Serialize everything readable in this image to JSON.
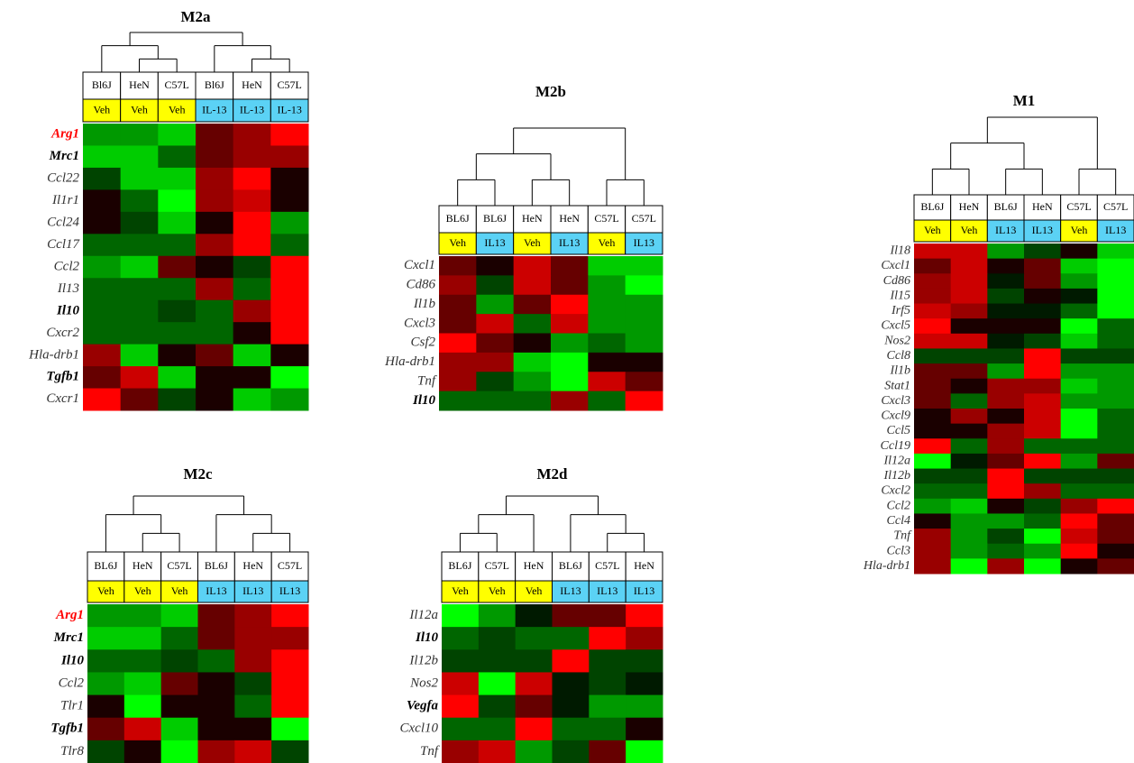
{
  "chart_data": [
    {
      "type": "heatmap",
      "title": "M2a",
      "columns": [
        "Bl6J",
        "HeN",
        "C57L",
        "Bl6J",
        "HeN",
        "C57L"
      ],
      "treatments": [
        "Veh",
        "Veh",
        "Veh",
        "IL-13",
        "IL-13",
        "IL-13"
      ],
      "treatment_colors": [
        "#ffff00",
        "#ffff00",
        "#ffff00",
        "#5bd2f5",
        "#5bd2f5",
        "#5bd2f5"
      ],
      "rows": [
        "Arg1",
        "Mrc1",
        "Ccl22",
        "Il1r1",
        "Ccl24",
        "Ccl17",
        "Ccl2",
        "Il13",
        "Il10",
        "Cxcr2",
        "Hla-drb1",
        "Tgfb1",
        "Cxcr1"
      ],
      "row_label_weights": [
        "bold",
        "bold",
        "normal",
        "normal",
        "normal",
        "normal",
        "normal",
        "normal",
        "bold",
        "normal",
        "normal",
        "bold",
        "normal"
      ],
      "row_label_colors": [
        "#ff0000",
        "#000000",
        "#333333",
        "#333333",
        "#333333",
        "#333333",
        "#333333",
        "#333333",
        "#000000",
        "#333333",
        "#333333",
        "#000000",
        "#333333"
      ],
      "colors": [
        [
          "#009900",
          "#009900",
          "#00cc00",
          "#660000",
          "#990000",
          "#ff0000"
        ],
        [
          "#00cc00",
          "#00cc00",
          "#006600",
          "#660000",
          "#990000",
          "#990000"
        ],
        [
          "#004400",
          "#00cc00",
          "#00cc00",
          "#990000",
          "#ff0000",
          "#1a0000"
        ],
        [
          "#1a0000",
          "#006600",
          "#00ff00",
          "#990000",
          "#cc0000",
          "#1a0000"
        ],
        [
          "#1a0000",
          "#004400",
          "#00cc00",
          "#1a0000",
          "#ff0000",
          "#009900"
        ],
        [
          "#006600",
          "#006600",
          "#006600",
          "#990000",
          "#ff0000",
          "#006600"
        ],
        [
          "#009900",
          "#00cc00",
          "#660000",
          "#1a0000",
          "#004400",
          "#ff0000"
        ],
        [
          "#006600",
          "#006600",
          "#006600",
          "#990000",
          "#006600",
          "#ff0000"
        ],
        [
          "#006600",
          "#006600",
          "#004400",
          "#006600",
          "#990000",
          "#ff0000"
        ],
        [
          "#006600",
          "#006600",
          "#006600",
          "#006600",
          "#1a0000",
          "#ff0000"
        ],
        [
          "#990000",
          "#00cc00",
          "#1a0000",
          "#660000",
          "#00cc00",
          "#1a0000"
        ],
        [
          "#660000",
          "#cc0000",
          "#00cc00",
          "#1a0000",
          "#1a0000",
          "#00ff00"
        ],
        [
          "#ff0000",
          "#660000",
          "#004400",
          "#1a0000",
          "#00cc00",
          "#009900"
        ]
      ]
    },
    {
      "type": "heatmap",
      "title": "M2b",
      "columns": [
        "BL6J",
        "BL6J",
        "HeN",
        "HeN",
        "C57L",
        "C57L"
      ],
      "treatments": [
        "Veh",
        "IL13",
        "Veh",
        "IL13",
        "Veh",
        "IL13"
      ],
      "treatment_colors": [
        "#ffff00",
        "#5bd2f5",
        "#ffff00",
        "#5bd2f5",
        "#ffff00",
        "#5bd2f5"
      ],
      "rows": [
        "Cxcl1",
        "Cd86",
        "Il1b",
        "Cxcl3",
        "Csf2",
        "Hla-drb1",
        "Tnf",
        "Il10"
      ],
      "row_label_weights": [
        "normal",
        "normal",
        "normal",
        "normal",
        "normal",
        "normal",
        "normal",
        "bold"
      ],
      "row_label_colors": [
        "#333333",
        "#333333",
        "#333333",
        "#333333",
        "#333333",
        "#333333",
        "#333333",
        "#000000"
      ],
      "colors": [
        [
          "#660000",
          "#1a0000",
          "#cc0000",
          "#660000",
          "#00cc00",
          "#00cc00"
        ],
        [
          "#990000",
          "#004400",
          "#cc0000",
          "#660000",
          "#009900",
          "#00ff00"
        ],
        [
          "#660000",
          "#009900",
          "#660000",
          "#ff0000",
          "#009900",
          "#009900"
        ],
        [
          "#660000",
          "#cc0000",
          "#006600",
          "#cc0000",
          "#009900",
          "#009900"
        ],
        [
          "#ff0000",
          "#660000",
          "#1a0000",
          "#009900",
          "#006600",
          "#009900"
        ],
        [
          "#990000",
          "#990000",
          "#00cc00",
          "#00ff00",
          "#1a0000",
          "#1a0000"
        ],
        [
          "#990000",
          "#004400",
          "#009900",
          "#00ff00",
          "#cc0000",
          "#660000"
        ],
        [
          "#006600",
          "#006600",
          "#006600",
          "#990000",
          "#006600",
          "#ff0000"
        ]
      ]
    },
    {
      "type": "heatmap",
      "title": "M1",
      "columns": [
        "BL6J",
        "HeN",
        "BL6J",
        "HeN",
        "C57L",
        "C57L"
      ],
      "treatments": [
        "Veh",
        "Veh",
        "IL13",
        "IL13",
        "Veh",
        "IL13"
      ],
      "treatment_colors": [
        "#ffff00",
        "#ffff00",
        "#5bd2f5",
        "#5bd2f5",
        "#ffff00",
        "#5bd2f5"
      ],
      "rows": [
        "Il18",
        "Cxcl1",
        "Cd86",
        "Il15",
        "Irf5",
        "Cxcl5",
        "Nos2",
        "Ccl8",
        "Il1b",
        "Stat1",
        "Cxcl3",
        "Cxcl9",
        "Ccl5",
        "Ccl19",
        "Il12a",
        "Il12b",
        "Cxcl2",
        "Ccl2",
        "Ccl4",
        "Tnf",
        "Ccl3",
        "Hla-drb1"
      ],
      "row_label_weights": [
        "normal",
        "normal",
        "normal",
        "normal",
        "normal",
        "normal",
        "normal",
        "normal",
        "normal",
        "normal",
        "normal",
        "normal",
        "normal",
        "normal",
        "normal",
        "normal",
        "normal",
        "normal",
        "normal",
        "normal",
        "normal",
        "normal"
      ],
      "row_label_colors": [
        "#333333",
        "#333333",
        "#333333",
        "#333333",
        "#333333",
        "#333333",
        "#333333",
        "#333333",
        "#333333",
        "#333333",
        "#333333",
        "#333333",
        "#333333",
        "#333333",
        "#333333",
        "#333333",
        "#333333",
        "#333333",
        "#333333",
        "#333333",
        "#333333",
        "#333333"
      ],
      "colors": [
        [
          "#cc0000",
          "#cc0000",
          "#009900",
          "#004400",
          "#1a0000",
          "#00cc00"
        ],
        [
          "#660000",
          "#cc0000",
          "#1a0000",
          "#660000",
          "#00cc00",
          "#00ff00"
        ],
        [
          "#990000",
          "#cc0000",
          "#001a00",
          "#660000",
          "#009900",
          "#00ff00"
        ],
        [
          "#990000",
          "#cc0000",
          "#004400",
          "#1a0000",
          "#001a00",
          "#00ff00"
        ],
        [
          "#cc0000",
          "#990000",
          "#001a00",
          "#001a00",
          "#006600",
          "#00ff00"
        ],
        [
          "#ff0000",
          "#1a0000",
          "#1a0000",
          "#1a0000",
          "#00ff00",
          "#006600"
        ],
        [
          "#cc0000",
          "#cc0000",
          "#001a00",
          "#004400",
          "#00cc00",
          "#006600"
        ],
        [
          "#004400",
          "#004400",
          "#004400",
          "#ff0000",
          "#004400",
          "#004400"
        ],
        [
          "#660000",
          "#660000",
          "#009900",
          "#ff0000",
          "#009900",
          "#009900"
        ],
        [
          "#660000",
          "#1a0000",
          "#990000",
          "#990000",
          "#00cc00",
          "#009900"
        ],
        [
          "#660000",
          "#006600",
          "#990000",
          "#cc0000",
          "#009900",
          "#009900"
        ],
        [
          "#1a0000",
          "#990000",
          "#1a0000",
          "#cc0000",
          "#00ff00",
          "#006600"
        ],
        [
          "#1a0000",
          "#1a0000",
          "#990000",
          "#cc0000",
          "#00ff00",
          "#006600"
        ],
        [
          "#ff0000",
          "#006600",
          "#990000",
          "#006600",
          "#006600",
          "#006600"
        ],
        [
          "#00ff00",
          "#001a00",
          "#660000",
          "#ff0000",
          "#009900",
          "#660000"
        ],
        [
          "#004400",
          "#004400",
          "#ff0000",
          "#004400",
          "#004400",
          "#004400"
        ],
        [
          "#006600",
          "#006600",
          "#ff0000",
          "#990000",
          "#006600",
          "#006600"
        ],
        [
          "#009900",
          "#00cc00",
          "#1a0000",
          "#004400",
          "#990000",
          "#ff0000"
        ],
        [
          "#1a0000",
          "#009900",
          "#009900",
          "#006600",
          "#ff0000",
          "#660000"
        ],
        [
          "#990000",
          "#009900",
          "#004400",
          "#00ff00",
          "#cc0000",
          "#660000"
        ],
        [
          "#990000",
          "#009900",
          "#006600",
          "#009900",
          "#ff0000",
          "#1a0000"
        ],
        [
          "#990000",
          "#00ff00",
          "#990000",
          "#00ff00",
          "#1a0000",
          "#660000"
        ]
      ]
    },
    {
      "type": "heatmap",
      "title": "M2c",
      "columns": [
        "BL6J",
        "HeN",
        "C57L",
        "BL6J",
        "HeN",
        "C57L"
      ],
      "treatments": [
        "Veh",
        "Veh",
        "Veh",
        "IL13",
        "IL13",
        "IL13"
      ],
      "treatment_colors": [
        "#ffff00",
        "#ffff00",
        "#ffff00",
        "#5bd2f5",
        "#5bd2f5",
        "#5bd2f5"
      ],
      "rows": [
        "Arg1",
        "Mrc1",
        "Il10",
        "Ccl2",
        "Tlr1",
        "Tgfb1",
        "Tlr8"
      ],
      "row_label_weights": [
        "bold",
        "bold",
        "bold",
        "normal",
        "normal",
        "bold",
        "normal"
      ],
      "row_label_colors": [
        "#ff0000",
        "#000000",
        "#000000",
        "#333333",
        "#333333",
        "#000000",
        "#333333"
      ],
      "colors": [
        [
          "#009900",
          "#009900",
          "#00cc00",
          "#660000",
          "#990000",
          "#ff0000"
        ],
        [
          "#00cc00",
          "#00cc00",
          "#006600",
          "#660000",
          "#990000",
          "#990000"
        ],
        [
          "#006600",
          "#006600",
          "#004400",
          "#006600",
          "#990000",
          "#ff0000"
        ],
        [
          "#009900",
          "#00cc00",
          "#660000",
          "#1a0000",
          "#004400",
          "#ff0000"
        ],
        [
          "#1a0000",
          "#00ff00",
          "#1a0000",
          "#1a0000",
          "#006600",
          "#ff0000"
        ],
        [
          "#660000",
          "#cc0000",
          "#00cc00",
          "#1a0000",
          "#1a0000",
          "#00ff00"
        ],
        [
          "#004400",
          "#1a0000",
          "#00ff00",
          "#990000",
          "#cc0000",
          "#004400"
        ]
      ]
    },
    {
      "type": "heatmap",
      "title": "M2d",
      "columns": [
        "BL6J",
        "C57L",
        "HeN",
        "BL6J",
        "C57L",
        "HeN"
      ],
      "treatments": [
        "Veh",
        "Veh",
        "Veh",
        "IL13",
        "IL13",
        "IL13"
      ],
      "treatment_colors": [
        "#ffff00",
        "#ffff00",
        "#ffff00",
        "#5bd2f5",
        "#5bd2f5",
        "#5bd2f5"
      ],
      "rows": [
        "Il12a",
        "Il10",
        "Il12b",
        "Nos2",
        "Vegfa",
        "Cxcl10",
        "Tnf"
      ],
      "row_label_weights": [
        "normal",
        "bold",
        "normal",
        "normal",
        "bold",
        "normal",
        "normal"
      ],
      "row_label_colors": [
        "#333333",
        "#000000",
        "#333333",
        "#333333",
        "#000000",
        "#333333",
        "#333333"
      ],
      "colors": [
        [
          "#00ff00",
          "#009900",
          "#001a00",
          "#660000",
          "#660000",
          "#ff0000"
        ],
        [
          "#006600",
          "#004400",
          "#006600",
          "#006600",
          "#ff0000",
          "#990000"
        ],
        [
          "#004400",
          "#004400",
          "#004400",
          "#ff0000",
          "#004400",
          "#004400"
        ],
        [
          "#cc0000",
          "#00ff00",
          "#cc0000",
          "#001a00",
          "#004400",
          "#001a00"
        ],
        [
          "#ff0000",
          "#004400",
          "#660000",
          "#001a00",
          "#009900",
          "#009900"
        ],
        [
          "#006600",
          "#006600",
          "#ff0000",
          "#006600",
          "#006600",
          "#1a0000"
        ],
        [
          "#990000",
          "#cc0000",
          "#009900",
          "#004400",
          "#660000",
          "#00ff00"
        ]
      ]
    }
  ]
}
